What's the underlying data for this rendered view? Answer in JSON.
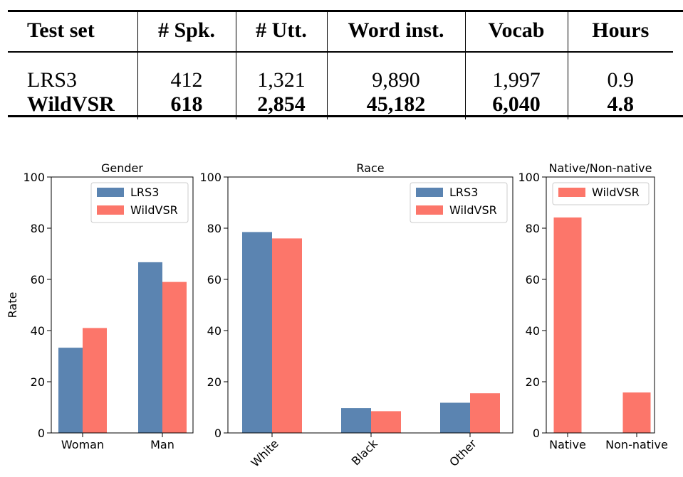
{
  "table": {
    "headers": [
      "Test set",
      "# Spk.",
      "# Utt.",
      "Word inst.",
      "Vocab",
      "Hours"
    ],
    "rows": [
      {
        "name": "LRS3",
        "values": [
          "412",
          "1,321",
          "9,890",
          "1,997",
          "0.9"
        ]
      },
      {
        "name": "WildVSR",
        "values": [
          "618",
          "2,854",
          "45,182",
          "6,040",
          "4.8"
        ]
      }
    ]
  },
  "colors": {
    "lrs3": "#5b84b1",
    "wildvsr": "#fc766a"
  },
  "chart_data": [
    {
      "type": "bar",
      "title": "Gender",
      "ylabel": "Rate",
      "ylim": [
        0,
        100
      ],
      "yticks": [
        "0",
        "20",
        "40",
        "60",
        "80",
        "100"
      ],
      "categories": [
        "Woman",
        "Man"
      ],
      "legend_position": "top-right",
      "series": [
        {
          "name": "LRS3",
          "values": [
            33.3,
            66.7
          ]
        },
        {
          "name": "WildVSR",
          "values": [
            41,
            59
          ]
        }
      ]
    },
    {
      "type": "bar",
      "title": "Race",
      "ylim": [
        0,
        100
      ],
      "yticks": [
        "0",
        "20",
        "40",
        "60",
        "80",
        "100"
      ],
      "categories": [
        "White",
        "Black",
        "Other"
      ],
      "legend_position": "top-right",
      "series": [
        {
          "name": "LRS3",
          "values": [
            78.5,
            9.7,
            11.8
          ]
        },
        {
          "name": "WildVSR",
          "values": [
            76,
            8.5,
            15.5
          ]
        }
      ]
    },
    {
      "type": "bar",
      "title": "Native/Non-native",
      "ylim": [
        0,
        100
      ],
      "yticks": [
        "0",
        "20",
        "40",
        "60",
        "80",
        "100"
      ],
      "categories": [
        "Native",
        "Non-native"
      ],
      "legend_position": "top-left",
      "series": [
        {
          "name": "WildVSR",
          "values": [
            84.2,
            15.8
          ]
        }
      ]
    }
  ]
}
